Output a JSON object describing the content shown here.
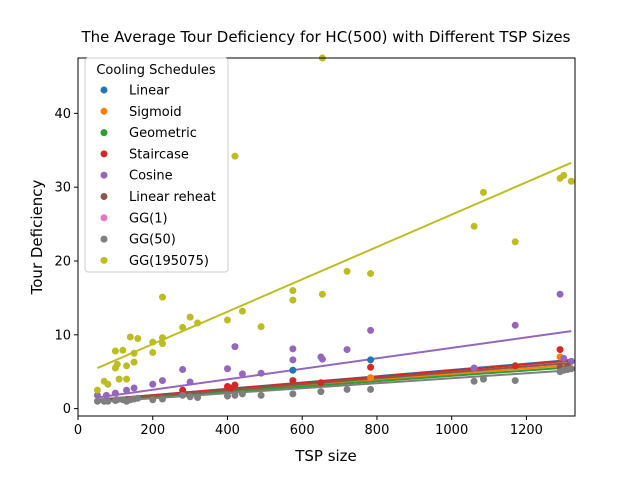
{
  "chart_data": {
    "type": "scatter",
    "title": "The Average Tour Deficiency for HC(500) with Different TSP Sizes",
    "xlabel": "TSP size",
    "ylabel": "Tour Deficiency",
    "xlim": [
      0,
      1330
    ],
    "ylim": [
      -1,
      47.5
    ],
    "xticks": [
      0,
      200,
      400,
      600,
      800,
      1000,
      1200
    ],
    "yticks": [
      0,
      10,
      20,
      30,
      40
    ],
    "grid": false,
    "legend": {
      "title": "Cooling Schedules",
      "placement": "top-left"
    },
    "series": [
      {
        "name": "Linear",
        "color": "#1f77b4",
        "x": [
          575,
          783
        ],
        "y": [
          5.2,
          6.6
        ],
        "fit": [
          [
            52,
            1.2
          ],
          [
            1320,
            6.6
          ]
        ]
      },
      {
        "name": "Sigmoid",
        "color": "#ff7f0e",
        "x": [
          783,
          1290
        ],
        "y": [
          4.2,
          7.0
        ],
        "fit": [
          [
            52,
            1.1
          ],
          [
            1320,
            5.9
          ]
        ]
      },
      {
        "name": "Geometric",
        "color": "#2ca02c",
        "x": [],
        "y": [],
        "fit": [
          [
            52,
            1.0
          ],
          [
            1320,
            5.6
          ]
        ]
      },
      {
        "name": "Staircase",
        "color": "#d62728",
        "x": [
          280,
          400,
          410,
          420,
          575,
          650,
          783,
          1170,
          1290
        ],
        "y": [
          2.5,
          3.0,
          2.8,
          3.2,
          3.8,
          3.5,
          5.6,
          5.8,
          8.0
        ],
        "fit": [
          [
            52,
            1.2
          ],
          [
            1320,
            6.5
          ]
        ]
      },
      {
        "name": "Cosine",
        "color": "#9467bd",
        "x": [
          52,
          76,
          100,
          130,
          150,
          200,
          226,
          280,
          300,
          400,
          420,
          440,
          490,
          575,
          575,
          650,
          654,
          720,
          783,
          1060,
          1170,
          1290,
          1300,
          1320
        ],
        "y": [
          1.8,
          1.8,
          2.1,
          2.5,
          2.8,
          3.3,
          3.8,
          5.3,
          3.6,
          5.4,
          8.4,
          4.7,
          4.8,
          6.6,
          8.1,
          7.0,
          6.7,
          8.0,
          10.6,
          5.5,
          11.3,
          15.5,
          6.8,
          6.4
        ],
        "fit": [
          [
            52,
            1.5
          ],
          [
            1320,
            10.5
          ]
        ]
      },
      {
        "name": "Linear reheat",
        "color": "#8c564b",
        "x": [
          1290,
          1310
        ],
        "y": [
          5.6,
          5.8
        ],
        "fit": [
          [
            52,
            1.1
          ],
          [
            1320,
            6.2
          ]
        ]
      },
      {
        "name": "GG(1)",
        "color": "#e377c2",
        "x": [],
        "y": [],
        "fit": []
      },
      {
        "name": "GG(50)",
        "color": "#7f7f7f",
        "x": [
          52,
          70,
          80,
          100,
          105,
          120,
          130,
          140,
          150,
          160,
          200,
          226,
          280,
          300,
          320,
          400,
          420,
          440,
          490,
          575,
          650,
          720,
          783,
          1060,
          1085,
          1170,
          1290,
          1300,
          1310,
          1320
        ],
        "y": [
          1.0,
          1.0,
          1.0,
          1.1,
          1.2,
          1.2,
          1.0,
          1.2,
          1.3,
          1.4,
          1.2,
          1.3,
          1.8,
          1.6,
          1.5,
          1.7,
          1.8,
          2.0,
          1.8,
          2.0,
          2.3,
          2.6,
          2.6,
          3.7,
          4.0,
          3.8,
          5.0,
          5.2,
          5.3,
          5.4
        ],
        "fit": [
          [
            52,
            0.9
          ],
          [
            1320,
            5.2
          ]
        ]
      },
      {
        "name": "GG(195075)",
        "color": "#bcbd22",
        "x": [
          52,
          70,
          80,
          100,
          100,
          105,
          110,
          120,
          130,
          130,
          140,
          150,
          150,
          160,
          200,
          200,
          226,
          226,
          226,
          280,
          300,
          320,
          400,
          420,
          440,
          490,
          575,
          575,
          654,
          654,
          720,
          783,
          1060,
          1085,
          1170,
          1290,
          1300,
          1320
        ],
        "y": [
          2.5,
          3.7,
          3.3,
          7.8,
          5.5,
          6.0,
          4.0,
          7.9,
          5.8,
          4.0,
          9.7,
          6.3,
          7.5,
          9.5,
          9.0,
          7.6,
          15.1,
          9.6,
          8.8,
          11.0,
          12.4,
          11.6,
          12.0,
          34.2,
          13.2,
          11.1,
          16.0,
          14.7,
          47.5,
          15.5,
          18.6,
          18.3,
          24.7,
          29.3,
          22.6,
          31.2,
          31.6,
          30.8
        ],
        "fit": [
          [
            52,
            5.5
          ],
          [
            1320,
            33.3
          ]
        ]
      }
    ]
  }
}
